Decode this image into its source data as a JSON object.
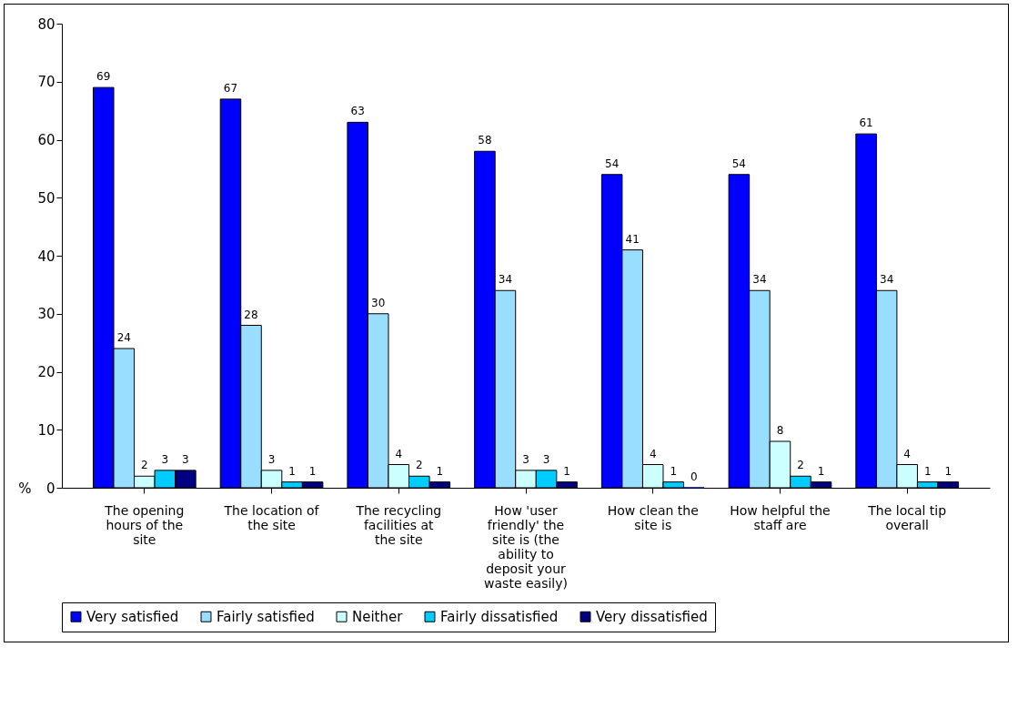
{
  "chart_data": {
    "type": "bar",
    "ylabel": "%",
    "categories": [
      "The opening hours of the site",
      "The location of the site",
      "The recycling facilities at the site",
      "How 'user friendly' the site is (the ability to deposit your waste easily)",
      "How clean the site is",
      "How helpful the staff are",
      "The local tip overall"
    ],
    "series": [
      {
        "name": "Very satisfied",
        "color": "#0000ff",
        "values": [
          69,
          67,
          63,
          58,
          54,
          54,
          61
        ]
      },
      {
        "name": "Fairly satisfied",
        "color": "#99ddff",
        "values": [
          24,
          28,
          30,
          34,
          41,
          34,
          34
        ]
      },
      {
        "name": "Neither",
        "color": "#ccffff",
        "values": [
          2,
          3,
          4,
          3,
          4,
          8,
          4
        ]
      },
      {
        "name": "Fairly dissatisfied",
        "color": "#00ccff",
        "values": [
          3,
          1,
          2,
          3,
          1,
          2,
          1
        ]
      },
      {
        "name": "Very dissatisfied",
        "color": "#000080",
        "values": [
          3,
          1,
          1,
          1,
          0,
          1,
          1
        ]
      }
    ],
    "ylim": [
      0,
      80
    ],
    "yticks": [
      0,
      10,
      20,
      30,
      40,
      50,
      60,
      70,
      80
    ],
    "data_labels": true,
    "legend": "bottom"
  }
}
